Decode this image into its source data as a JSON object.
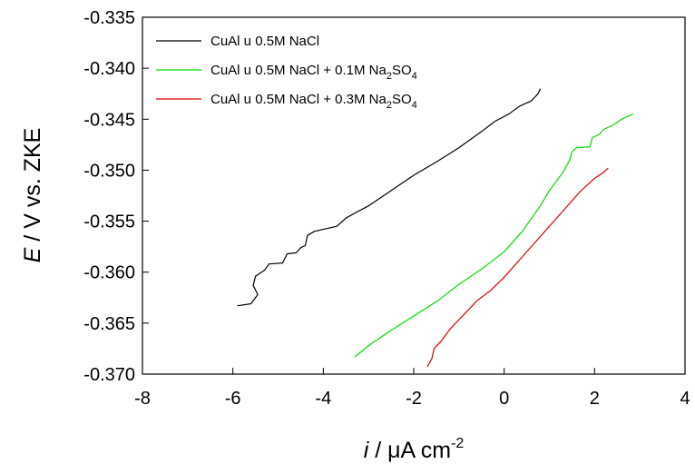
{
  "chart_data": {
    "type": "line",
    "xlabel": {
      "var": "i",
      "rest": " / μA cm",
      "sup": "-2"
    },
    "ylabel": {
      "var": "E",
      "rest": " / V vs. ZKE"
    },
    "xlim": [
      -8,
      4
    ],
    "ylim": [
      -0.37,
      -0.335
    ],
    "xticks": [
      -8,
      -6,
      -4,
      -2,
      0,
      2,
      4
    ],
    "xtick_labels": [
      "-8",
      "-6",
      "-4",
      "-2",
      "0",
      "2",
      "4"
    ],
    "yticks": [
      -0.37,
      -0.365,
      -0.36,
      -0.355,
      -0.35,
      -0.345,
      -0.34,
      -0.335
    ],
    "ytick_labels": [
      "-0.370",
      "-0.365",
      "-0.360",
      "-0.355",
      "-0.350",
      "-0.345",
      "-0.340",
      "-0.335"
    ],
    "grid": false,
    "legend_position": "top-left",
    "series": [
      {
        "name": "CuAl u 0.5M NaCl",
        "legend": {
          "main": "CuAl u 0.5M NaCl",
          "sub1": "",
          "mid": "",
          "sub2": ""
        },
        "color": "#000000",
        "points": [
          [
            -5.9,
            -0.3633
          ],
          [
            -5.6,
            -0.3631
          ],
          [
            -5.45,
            -0.3622
          ],
          [
            -5.55,
            -0.3613
          ],
          [
            -5.5,
            -0.3604
          ],
          [
            -5.3,
            -0.3598
          ],
          [
            -5.2,
            -0.3592
          ],
          [
            -4.9,
            -0.3591
          ],
          [
            -4.8,
            -0.3582
          ],
          [
            -4.6,
            -0.3581
          ],
          [
            -4.5,
            -0.3576
          ],
          [
            -4.4,
            -0.3574
          ],
          [
            -4.35,
            -0.3564
          ],
          [
            -4.2,
            -0.356
          ],
          [
            -4.0,
            -0.3558
          ],
          [
            -3.7,
            -0.3555
          ],
          [
            -3.5,
            -0.3547
          ],
          [
            -3.3,
            -0.3542
          ],
          [
            -3.0,
            -0.3535
          ],
          [
            -2.5,
            -0.352
          ],
          [
            -2.0,
            -0.3505
          ],
          [
            -1.5,
            -0.3492
          ],
          [
            -1.0,
            -0.3478
          ],
          [
            -0.5,
            -0.3462
          ],
          [
            -0.2,
            -0.3452
          ],
          [
            0.1,
            -0.3445
          ],
          [
            0.35,
            -0.3437
          ],
          [
            0.6,
            -0.3432
          ],
          [
            0.75,
            -0.3425
          ],
          [
            0.8,
            -0.342
          ]
        ]
      },
      {
        "name": "CuAl u 0.5M NaCl + 0.1M Na2SO4",
        "legend": {
          "main": "CuAl u 0.5M NaCl + 0.1M Na",
          "sub1": "2",
          "mid": "SO",
          "sub2": "4"
        },
        "color": "#00dd00",
        "points": [
          [
            -3.3,
            -0.3683
          ],
          [
            -3.0,
            -0.3672
          ],
          [
            -2.5,
            -0.3657
          ],
          [
            -2.0,
            -0.3643
          ],
          [
            -1.5,
            -0.3629
          ],
          [
            -1.0,
            -0.3612
          ],
          [
            -0.5,
            -0.3597
          ],
          [
            0.0,
            -0.358
          ],
          [
            0.4,
            -0.356
          ],
          [
            0.8,
            -0.3535
          ],
          [
            1.0,
            -0.352
          ],
          [
            1.3,
            -0.3502
          ],
          [
            1.45,
            -0.349
          ],
          [
            1.5,
            -0.3482
          ],
          [
            1.6,
            -0.3478
          ],
          [
            1.9,
            -0.3477
          ],
          [
            1.95,
            -0.3468
          ],
          [
            2.1,
            -0.3465
          ],
          [
            2.2,
            -0.346
          ],
          [
            2.4,
            -0.3456
          ],
          [
            2.6,
            -0.345
          ],
          [
            2.7,
            -0.3448
          ],
          [
            2.85,
            -0.3445
          ]
        ]
      },
      {
        "name": "CuAl u 0.5M NaCl + 0.3M Na2SO4",
        "legend": {
          "main": "CuAl u 0.5M NaCl + 0.3M Na",
          "sub1": "2",
          "mid": "SO",
          "sub2": "4"
        },
        "color": "#dd0000",
        "points": [
          [
            -1.7,
            -0.3693
          ],
          [
            -1.6,
            -0.3685
          ],
          [
            -1.55,
            -0.3675
          ],
          [
            -1.4,
            -0.3668
          ],
          [
            -1.2,
            -0.3656
          ],
          [
            -0.9,
            -0.3642
          ],
          [
            -0.6,
            -0.3628
          ],
          [
            -0.3,
            -0.3618
          ],
          [
            0.0,
            -0.3605
          ],
          [
            0.3,
            -0.359
          ],
          [
            0.6,
            -0.3575
          ],
          [
            0.9,
            -0.356
          ],
          [
            1.2,
            -0.3545
          ],
          [
            1.5,
            -0.353
          ],
          [
            1.7,
            -0.352
          ],
          [
            2.0,
            -0.3508
          ],
          [
            2.2,
            -0.3502
          ],
          [
            2.3,
            -0.3498
          ]
        ]
      }
    ]
  }
}
